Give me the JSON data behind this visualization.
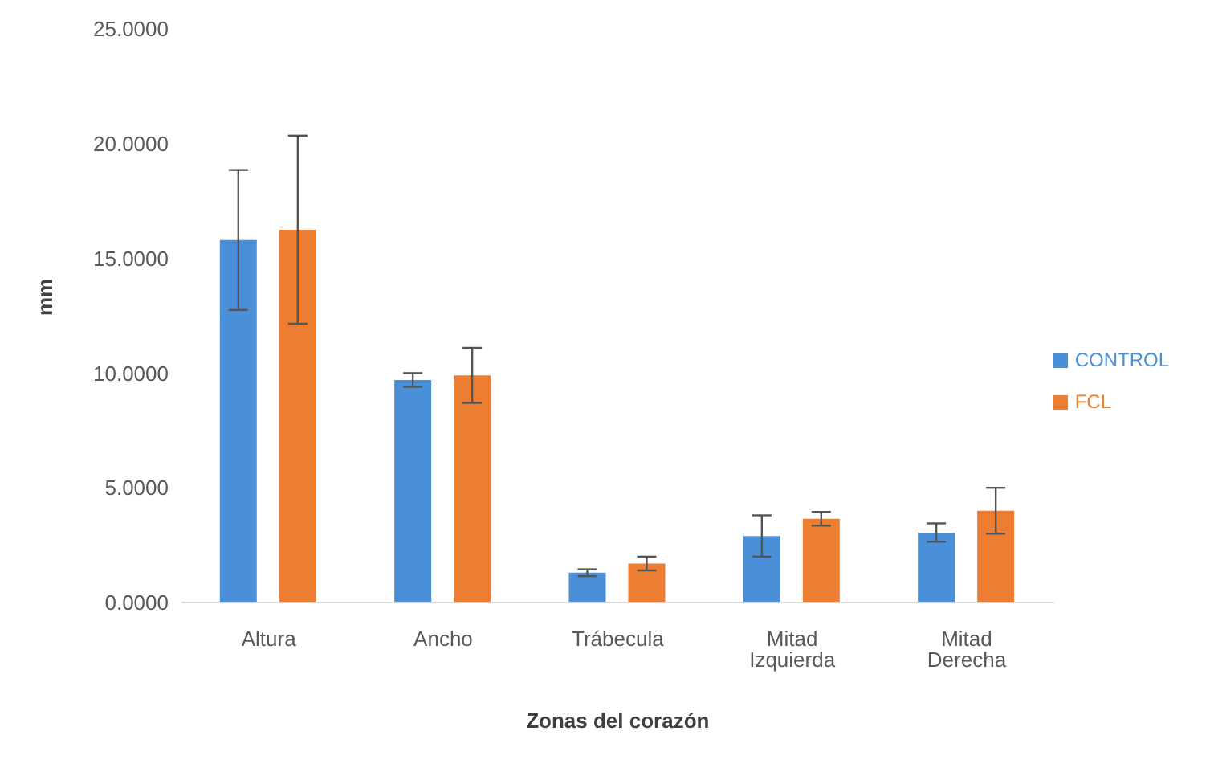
{
  "chart_data": {
    "type": "bar",
    "xlabel": "Zonas del corazón",
    "ylabel": "mm",
    "categories": [
      "Altura",
      "Ancho",
      "Trábecula",
      "Mitad Izquierda",
      "Mitad Derecha"
    ],
    "series": [
      {
        "name": "CONTROL",
        "color": "#4a90d9",
        "values": [
          15.8,
          9.7,
          1.3,
          2.9,
          3.05
        ],
        "errors": [
          3.05,
          0.3,
          0.15,
          0.9,
          0.4
        ]
      },
      {
        "name": "FCL",
        "color": "#ed7d31",
        "values": [
          16.25,
          9.9,
          1.7,
          3.65,
          4.0
        ],
        "errors": [
          4.1,
          1.2,
          0.3,
          0.3,
          1.0
        ]
      }
    ],
    "ylim": [
      0,
      25
    ],
    "yticks": [
      {
        "value": 0,
        "label": "0.0000"
      },
      {
        "value": 5,
        "label": "5.0000"
      },
      {
        "value": 10,
        "label": "10.0000"
      },
      {
        "value": 15,
        "label": "15.0000"
      },
      {
        "value": 20,
        "label": "20.0000"
      },
      {
        "value": 25,
        "label": "25.0000"
      }
    ],
    "grid": false,
    "legend": "right"
  }
}
